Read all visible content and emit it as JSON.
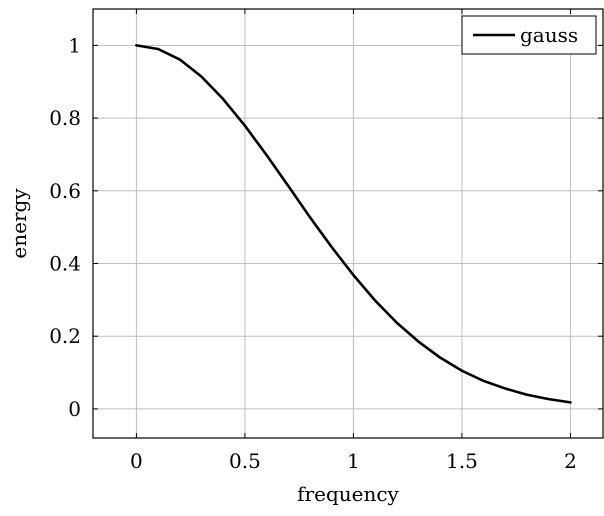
{
  "chart_data": {
    "type": "line",
    "title": "",
    "xlabel": "frequency",
    "ylabel": "energy",
    "xlim": [
      -0.2,
      2.15
    ],
    "ylim": [
      -0.08,
      1.1
    ],
    "xticks": [
      0,
      0.5,
      1,
      1.5,
      2
    ],
    "xtick_labels": [
      "0",
      "0.5",
      "1",
      "1.5",
      "2"
    ],
    "yticks": [
      0,
      0.2,
      0.4,
      0.6,
      0.8,
      1
    ],
    "ytick_labels": [
      "0",
      "0.2",
      "0.4",
      "0.6",
      "0.8",
      "1"
    ],
    "grid": true,
    "legend_position": "top-right",
    "series": [
      {
        "name": "gauss",
        "color": "#000000",
        "x": [
          0,
          0.1,
          0.2,
          0.3,
          0.4,
          0.5,
          0.6,
          0.7,
          0.8,
          0.9,
          1.0,
          1.1,
          1.2,
          1.3,
          1.4,
          1.5,
          1.6,
          1.7,
          1.8,
          1.9,
          2.0
        ],
        "y": [
          1.0,
          0.99,
          0.961,
          0.914,
          0.852,
          0.779,
          0.698,
          0.613,
          0.527,
          0.445,
          0.368,
          0.298,
          0.237,
          0.185,
          0.141,
          0.105,
          0.077,
          0.056,
          0.039,
          0.027,
          0.018
        ]
      }
    ]
  }
}
